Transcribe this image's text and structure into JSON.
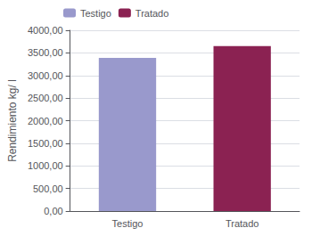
{
  "chart_data": {
    "type": "bar",
    "categories": [
      "Testigo",
      "Tratado"
    ],
    "series": [
      {
        "name": "Testigo",
        "color": "#9999cc",
        "values": [
          3390,
          null
        ]
      },
      {
        "name": "Tratado",
        "color": "#8b2252",
        "values": [
          null,
          3650
        ]
      }
    ],
    "ylabel": "Rendimiento kg/ l",
    "ylim": [
      0,
      4000
    ],
    "yticks": [
      {
        "value": 0,
        "label": "0,00"
      },
      {
        "value": 500,
        "label": "500,00"
      },
      {
        "value": 1000,
        "label": "1000,00"
      },
      {
        "value": 1500,
        "label": "1500,00"
      },
      {
        "value": 2000,
        "label": "2000,00"
      },
      {
        "value": 2500,
        "label": "2500,00"
      },
      {
        "value": 3000,
        "label": "3000,00"
      },
      {
        "value": 3500,
        "label": "3500,00"
      },
      {
        "value": 4000,
        "label": "4000,00"
      }
    ],
    "grid": true,
    "legend": "upper left"
  }
}
